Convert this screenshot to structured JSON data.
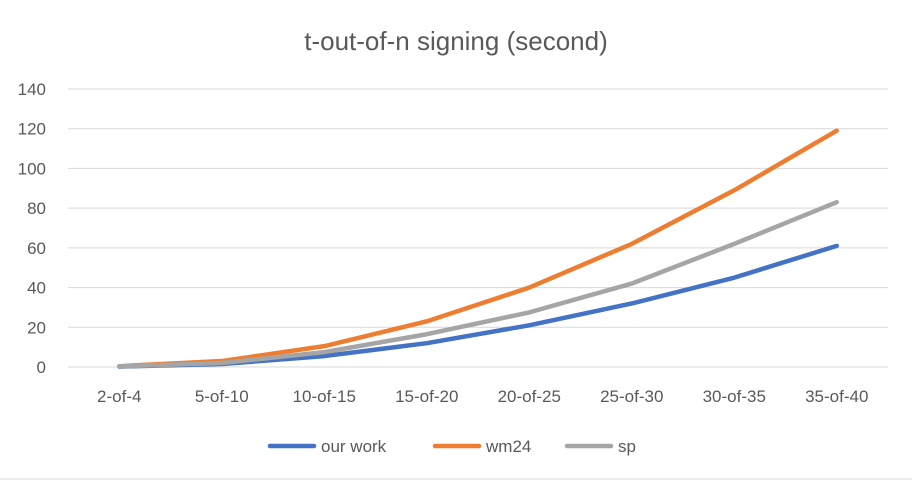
{
  "chart_data": {
    "type": "line",
    "title": "t-out-of-n signing (second)",
    "xlabel": "",
    "ylabel": "",
    "categories": [
      "2-of-4",
      "5-of-10",
      "10-of-15",
      "15-of-20",
      "20-of-25",
      "25-of-30",
      "30-of-35",
      "35-of-40"
    ],
    "ylim": [
      0,
      140
    ],
    "yticks": [
      0,
      20,
      40,
      60,
      80,
      100,
      120,
      140
    ],
    "grid": true,
    "legend_position": "bottom",
    "series": [
      {
        "name": "our work",
        "color": "#4472c4",
        "values": [
          0.2,
          1.5,
          5.5,
          12,
          21,
          32,
          45,
          61
        ]
      },
      {
        "name": "wm24",
        "color": "#ed7d31",
        "values": [
          0.4,
          3,
          10.5,
          23,
          40,
          62,
          89,
          119
        ]
      },
      {
        "name": "sp",
        "color": "#a5a5a5",
        "values": [
          0.3,
          2,
          7.5,
          16.5,
          27.5,
          42,
          62,
          83
        ]
      }
    ]
  }
}
